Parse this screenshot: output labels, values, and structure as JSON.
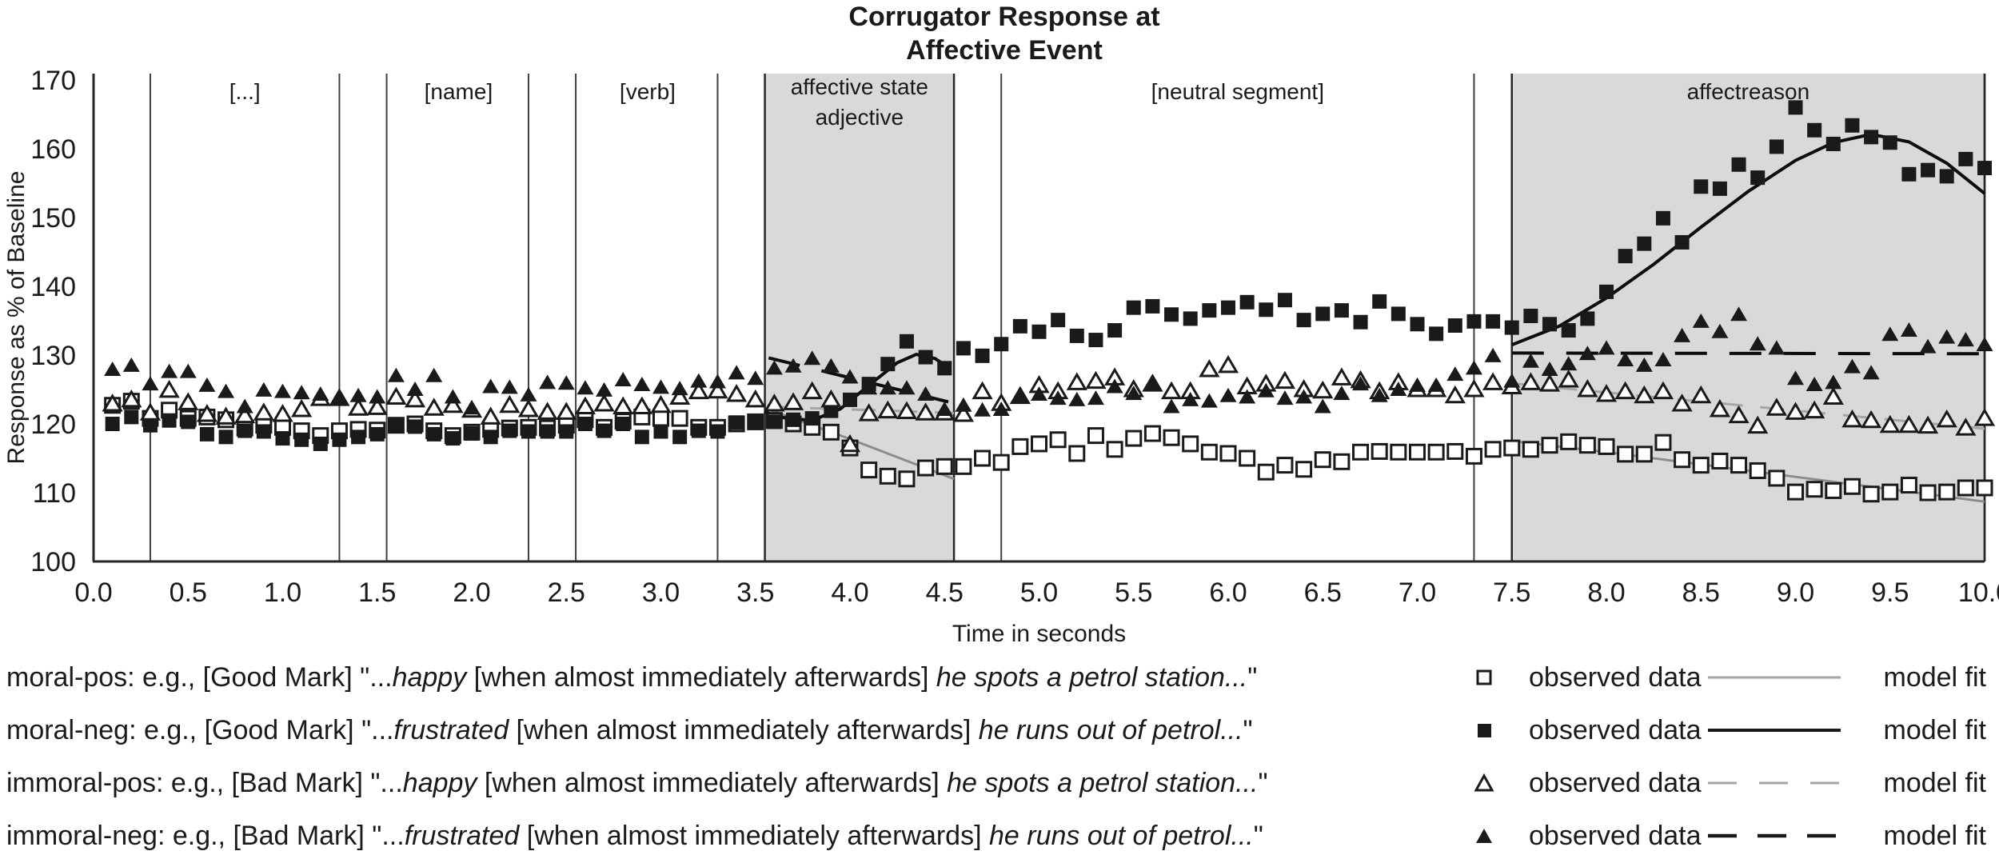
{
  "chart_data": {
    "type": "scatter",
    "title": [
      "Corrugator Response at",
      "Affective Event"
    ],
    "xlabel": "Time in seconds",
    "ylabel": "Response as % of Baseline",
    "xlim": [
      0,
      10
    ],
    "ylim": [
      100,
      170
    ],
    "x_ticks": {
      "start": 0,
      "end": 10,
      "step": 0.5
    },
    "y_ticks": {
      "start": 100,
      "end": 170,
      "step": 10
    },
    "grid": false,
    "t_start": 0.1,
    "t_step": 0.1,
    "series": [
      {
        "name": "moral-pos",
        "marker": "open-square",
        "values": [
          122.7,
          123.3,
          120.8,
          122.0,
          120.8,
          121.0,
          120.6,
          119.4,
          119.8,
          119.5,
          119.0,
          118.3,
          119.0,
          119.2,
          119.1,
          119.8,
          120.0,
          119.0,
          118.3,
          118.8,
          119.2,
          119.4,
          119.5,
          119.4,
          119.8,
          120.6,
          119.5,
          120.4,
          121.0,
          120.8,
          120.8,
          119.5,
          119.5,
          120.0,
          120.3,
          120.5,
          120.0,
          119.5,
          118.8,
          116.5,
          113.3,
          112.4,
          112.0,
          113.6,
          113.8,
          113.8,
          115.0,
          114.4,
          116.7,
          117.1,
          117.7,
          115.7,
          118.3,
          116.3,
          117.9,
          118.6,
          118.0,
          117.1,
          115.9,
          115.7,
          115.0,
          113.0,
          114.0,
          113.4,
          114.8,
          114.5,
          115.9,
          116.0,
          115.9,
          115.9,
          115.9,
          116.0,
          115.3,
          116.3,
          116.5,
          116.3,
          116.9,
          117.4,
          116.9,
          116.7,
          115.6,
          115.6,
          117.3,
          114.8,
          114.0,
          114.6,
          114.0,
          113.2,
          112.1,
          110.1,
          110.5,
          110.3,
          110.9,
          109.8,
          110.1,
          111.1,
          110.0,
          110.1,
          110.7,
          110.7
        ]
      },
      {
        "name": "moral-neg",
        "marker": "filled-square",
        "values": [
          120.0,
          121.0,
          119.8,
          120.5,
          120.3,
          118.5,
          118.1,
          119.0,
          118.9,
          117.9,
          117.7,
          117.1,
          117.7,
          118.1,
          118.5,
          119.8,
          119.6,
          118.5,
          117.9,
          118.6,
          118.1,
          119.0,
          118.9,
          118.9,
          118.9,
          120.0,
          119.0,
          120.0,
          118.1,
          118.9,
          118.1,
          119.0,
          118.9,
          120.2,
          120.3,
          120.3,
          120.6,
          120.8,
          121.9,
          123.5,
          125.8,
          128.7,
          132.0,
          129.7,
          128.1,
          131.0,
          129.9,
          131.6,
          134.2,
          133.4,
          135.1,
          132.8,
          132.2,
          133.6,
          136.9,
          137.1,
          135.9,
          135.3,
          136.5,
          136.9,
          137.7,
          136.6,
          138.0,
          135.1,
          136.0,
          136.5,
          134.8,
          137.8,
          136.0,
          134.5,
          133.1,
          134.3,
          134.9,
          134.9,
          134.0,
          135.7,
          134.5,
          133.6,
          135.3,
          139.2,
          144.4,
          146.2,
          149.9,
          146.4,
          154.5,
          154.2,
          157.7,
          155.8,
          160.3,
          166.0,
          162.7,
          160.7,
          163.4,
          161.7,
          160.9,
          156.3,
          156.9,
          156.0,
          158.5,
          157.2
        ]
      },
      {
        "name": "immoral-pos",
        "marker": "open-triangle",
        "values": [
          122.9,
          123.5,
          121.6,
          124.9,
          123.1,
          121.4,
          121.0,
          121.2,
          121.6,
          121.4,
          122.1,
          123.7,
          123.7,
          122.3,
          122.4,
          123.9,
          123.5,
          122.3,
          122.7,
          122.0,
          121.0,
          122.7,
          122.1,
          121.7,
          121.7,
          122.5,
          122.9,
          122.5,
          122.5,
          122.7,
          123.9,
          124.7,
          124.8,
          124.3,
          123.5,
          122.9,
          123.1,
          124.7,
          123.5,
          117.0,
          121.5,
          121.9,
          121.8,
          121.6,
          121.6,
          121.4,
          124.7,
          123.0,
          124.0,
          125.6,
          124.7,
          126.0,
          126.2,
          126.7,
          125.0,
          125.8,
          124.7,
          124.7,
          127.9,
          128.5,
          125.4,
          125.8,
          126.2,
          125.0,
          124.8,
          126.7,
          126.3,
          124.7,
          126.0,
          125.0,
          125.0,
          124.1,
          125.0,
          126.0,
          125.4,
          126.0,
          125.8,
          126.4,
          125.0,
          124.3,
          124.7,
          124.1,
          124.7,
          122.9,
          124.1,
          122.1,
          121.2,
          119.7,
          122.3,
          121.7,
          121.9,
          123.9,
          120.6,
          120.5,
          119.8,
          119.8,
          119.7,
          120.6,
          119.4,
          120.8
        ]
      },
      {
        "name": "immoral-neg",
        "marker": "filled-triangle",
        "values": [
          127.9,
          128.5,
          125.8,
          127.6,
          127.6,
          125.6,
          124.7,
          122.5,
          124.9,
          124.7,
          124.5,
          124.3,
          123.7,
          124.1,
          123.9,
          127.0,
          125.0,
          127.0,
          123.9,
          122.3,
          125.4,
          125.3,
          124.2,
          126.0,
          125.9,
          125.2,
          124.9,
          126.4,
          125.7,
          125.3,
          125.1,
          126.2,
          126.1,
          127.4,
          126.6,
          128.1,
          128.4,
          129.5,
          128.4,
          126.8,
          125.2,
          125.2,
          125.2,
          124.3,
          122.1,
          122.7,
          122.0,
          122.1,
          124.1,
          124.3,
          123.7,
          123.5,
          123.7,
          125.4,
          124.4,
          125.8,
          122.5,
          123.5,
          123.3,
          124.1,
          123.9,
          124.8,
          123.7,
          123.9,
          122.5,
          124.4,
          125.8,
          124.1,
          125.0,
          125.6,
          125.6,
          127.2,
          128.1,
          129.9,
          126.2,
          129.1,
          127.9,
          128.7,
          130.2,
          131.0,
          129.3,
          128.5,
          129.3,
          132.8,
          134.9,
          133.4,
          135.9,
          131.6,
          131.0,
          126.6,
          125.7,
          126.0,
          128.3,
          127.4,
          133.0,
          133.6,
          131.2,
          132.6,
          132.2,
          131.5
        ]
      }
    ],
    "fits": [
      {
        "name": "moral-pos model fit",
        "style": "solid",
        "color": "#8c8c8c",
        "width": 3,
        "segments": [
          [
            [
              3.57,
              122.1
            ],
            [
              4.0,
              117.8
            ],
            [
              4.55,
              112.0
            ]
          ],
          [
            [
              7.5,
              117.5
            ],
            [
              8.0,
              115.9
            ],
            [
              8.5,
              114.1
            ],
            [
              9.0,
              112.3
            ],
            [
              9.5,
              110.5
            ],
            [
              10.0,
              108.7
            ]
          ]
        ]
      },
      {
        "name": "moral-neg model fit",
        "style": "solid",
        "color": "#0d0d0d",
        "width": 4,
        "segments": [
          [
            [
              3.55,
              121.7
            ],
            [
              3.65,
              120.9
            ],
            [
              3.8,
              120.5
            ],
            [
              3.95,
              122.2
            ],
            [
              4.1,
              125.6
            ],
            [
              4.25,
              128.9
            ],
            [
              4.35,
              130.1
            ],
            [
              4.45,
              129.5
            ],
            [
              4.52,
              128.2
            ]
          ],
          [
            [
              7.5,
              131.5
            ],
            [
              7.75,
              134.2
            ],
            [
              8.0,
              138.3
            ],
            [
              8.25,
              143.2
            ],
            [
              8.5,
              148.6
            ],
            [
              8.75,
              153.8
            ],
            [
              9.0,
              158.3
            ],
            [
              9.2,
              160.9
            ],
            [
              9.4,
              162.1
            ],
            [
              9.6,
              161.0
            ],
            [
              9.8,
              157.9
            ],
            [
              10.0,
              153.5
            ]
          ]
        ]
      },
      {
        "name": "immoral-pos model fit",
        "style": "dashed",
        "color": "#a6a6a6",
        "width": 3,
        "segments": [
          [
            [
              3.57,
              122.5
            ],
            [
              4.55,
              121.6
            ]
          ],
          [
            [
              7.5,
              125.9
            ],
            [
              10.0,
              119.3
            ]
          ]
        ]
      },
      {
        "name": "immoral-neg model fit",
        "style": "dashed",
        "color": "#0d0d0d",
        "width": 4,
        "segments": [
          [
            [
              3.57,
              129.6
            ],
            [
              4.52,
              123.2
            ]
          ],
          [
            [
              7.5,
              130.3
            ],
            [
              10.0,
              130.2
            ]
          ]
        ]
      }
    ],
    "regions": {
      "boundary_lines_t": [
        0.3,
        1.3,
        1.55,
        2.3,
        2.55,
        3.3,
        4.8,
        7.3
      ],
      "shaded": [
        {
          "from": 3.55,
          "to": 4.55,
          "label": [
            "affective state",
            "adjective"
          ]
        },
        {
          "from": 7.5,
          "to": 10.0,
          "label": [
            "affectreason"
          ]
        }
      ],
      "labels": [
        {
          "t": 0.8,
          "text": "[...]"
        },
        {
          "t": 1.93,
          "text": "[name]"
        },
        {
          "t": 2.93,
          "text": "[verb]"
        },
        {
          "t": 6.05,
          "text": "[neutral segment]"
        }
      ]
    },
    "colors": {
      "shade": "#d9d9d9",
      "axis": "#262626",
      "ink": "#1a1a1a",
      "line": "#404040"
    }
  },
  "legend": {
    "observed_label": "observed data",
    "fit_label": "model fit",
    "rows": [
      {
        "name": "moral-pos",
        "marker": "open-square",
        "line": "gray-solid",
        "parts": [
          {
            "text": "moral-pos: e.g., [Good Mark] \"...",
            "italic": false
          },
          {
            "text": "happy",
            "italic": true
          },
          {
            "text": " [when almost immediately afterwards] ",
            "italic": false
          },
          {
            "text": "he spots a petrol station...",
            "italic": true
          },
          {
            "text": "\"",
            "italic": false
          }
        ]
      },
      {
        "name": "moral-neg",
        "marker": "filled-square",
        "line": "black-solid",
        "parts": [
          {
            "text": "moral-neg: e.g., [Good Mark] \"...",
            "italic": false
          },
          {
            "text": "frustrated",
            "italic": true
          },
          {
            "text": " [when almost immediately afterwards] ",
            "italic": false
          },
          {
            "text": "he runs out of petrol...",
            "italic": true
          },
          {
            "text": "\"",
            "italic": false
          }
        ]
      },
      {
        "name": "immoral-pos",
        "marker": "open-triangle",
        "line": "gray-dashed",
        "parts": [
          {
            "text": "immoral-pos: e.g., [Bad Mark] \"...",
            "italic": false
          },
          {
            "text": "happy",
            "italic": true
          },
          {
            "text": " [when almost immediately afterwards] ",
            "italic": false
          },
          {
            "text": "he spots a petrol station...",
            "italic": true
          },
          {
            "text": "\"",
            "italic": false
          }
        ]
      },
      {
        "name": "immoral-neg",
        "marker": "filled-triangle",
        "line": "black-dashed",
        "parts": [
          {
            "text": "immoral-neg: e.g., [Bad Mark] \"...",
            "italic": false
          },
          {
            "text": "frustrated",
            "italic": true
          },
          {
            "text": " [when almost immediately afterwards] ",
            "italic": false
          },
          {
            "text": "he runs out of petrol...",
            "italic": true
          },
          {
            "text": "\"",
            "italic": false
          }
        ]
      }
    ]
  }
}
